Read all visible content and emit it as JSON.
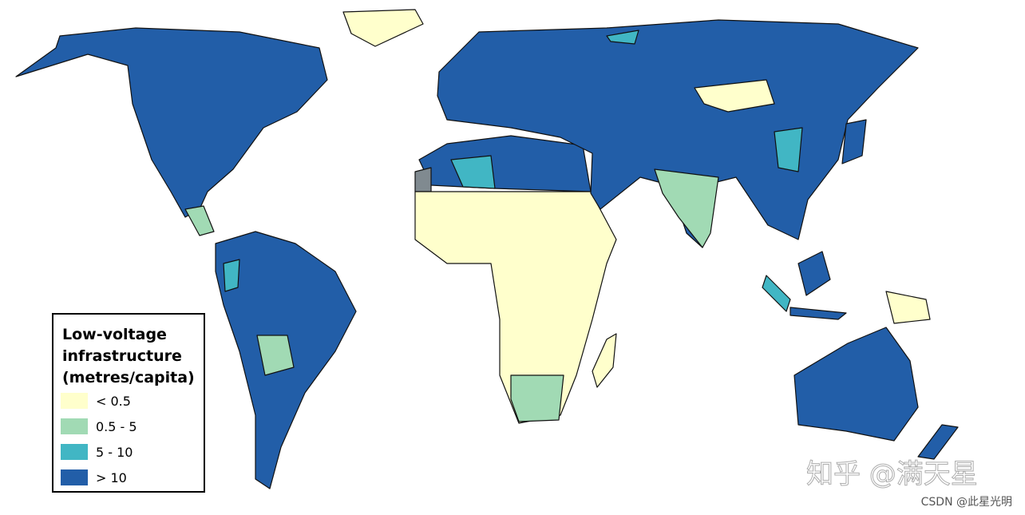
{
  "legend": {
    "title_lines": [
      "Low-voltage",
      "infrastructure",
      "(metres/capita)"
    ],
    "items": [
      {
        "label": "< 0.5",
        "color": "#ffffcc"
      },
      {
        "label": "0.5 - 5",
        "color": "#a1dab4"
      },
      {
        "label": "5 - 10",
        "color": "#41b6c4"
      },
      {
        "label": "> 10",
        "color": "#225ea8"
      }
    ]
  },
  "no_data_color": "#808a90",
  "watermarks": [
    "知乎 @满天星",
    "CSDN @此星光明"
  ]
}
